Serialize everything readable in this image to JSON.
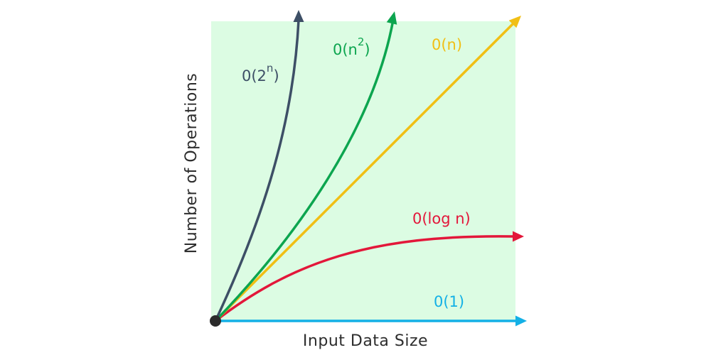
{
  "chart_data": {
    "type": "line",
    "xlabel": "Input Data Size",
    "ylabel": "Number of Operations",
    "plot_background": "#dcfce3",
    "origin_color": "#2b2b2b",
    "series": [
      {
        "name": "0(2",
        "sup": "n",
        "suffix": ")",
        "color": "#3d4f66",
        "curve": "exponential"
      },
      {
        "name": "0(n",
        "sup": "2",
        "suffix": ")",
        "color": "#0ca54f",
        "curve": "quadratic"
      },
      {
        "name": "0(n)",
        "color": "#f1bf15",
        "curve": "linear"
      },
      {
        "name": "0(log n)",
        "color": "#e3173a",
        "curve": "logarithmic"
      },
      {
        "name": "0(1)",
        "color": "#13b0e6",
        "curve": "constant"
      }
    ]
  }
}
